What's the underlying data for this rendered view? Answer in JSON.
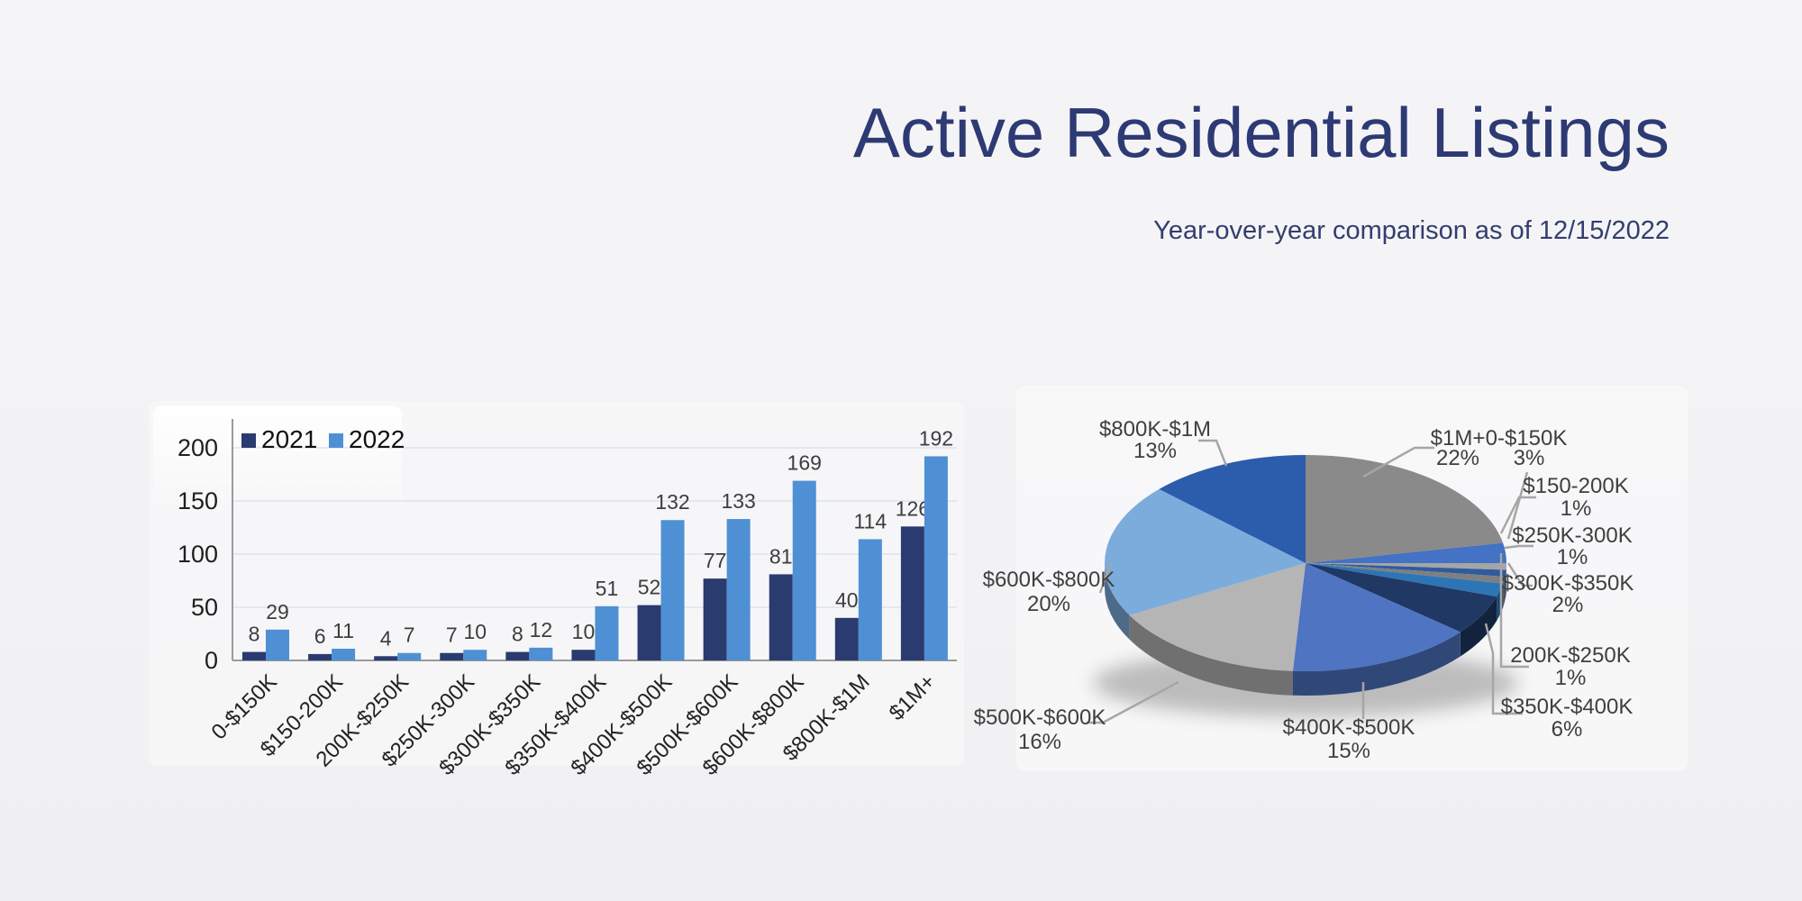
{
  "page": {
    "background": "#f2f2f4"
  },
  "header": {
    "title": "Active Residential Listings",
    "subtitle": "Year-over-year comparison as of 12/15/2022"
  },
  "chart_data": [
    {
      "type": "bar",
      "title": "",
      "xlabel": "",
      "ylabel": "",
      "categories": [
        "0-$150K",
        "$150-200K",
        "200K-$250K",
        "$250K-300K",
        "$300K-$350K",
        "$350K-$400K",
        "$400K-$500K",
        "$500K-$600K",
        "$600K-$800K",
        "$800K-$1M",
        "$1M+"
      ],
      "series": [
        {
          "name": "2021",
          "color": "#293b6f",
          "values": [
            8,
            6,
            4,
            7,
            8,
            10,
            52,
            77,
            81,
            40,
            126
          ]
        },
        {
          "name": "2022",
          "color": "#4f90d5",
          "values": [
            29,
            11,
            7,
            10,
            12,
            51,
            132,
            133,
            169,
            114,
            192
          ]
        }
      ],
      "ylim": [
        0,
        200
      ],
      "yticks": [
        0,
        50,
        100,
        150,
        200
      ],
      "grid": true,
      "value_labels": true,
      "legend_position": "top-left"
    },
    {
      "type": "pie",
      "style": "3d",
      "labels": [
        "0-$150K",
        "$150-200K",
        "200K-$250K",
        "$250K-300K",
        "$300K-$350K",
        "$350K-$400K",
        "$400K-$500K",
        "$500K-$600K",
        "$600K-$800K",
        "$800K-$1M",
        "$1M+"
      ],
      "values": [
        3,
        1,
        1,
        1,
        2,
        6,
        15,
        16,
        20,
        13,
        22
      ],
      "percent_labels": [
        "3%",
        "1%",
        "1%",
        "1%",
        "2%",
        "6%",
        "15%",
        "16%",
        "20%",
        "13%",
        "22%"
      ],
      "colors": [
        "#4472c4",
        "#a5a5a5",
        "#2f5b9d",
        "#7f7f7f",
        "#2e75b6",
        "#1f3864",
        "#4e74c2",
        "#b5b5b5",
        "#7cacdc",
        "#2c5cac",
        "#8a8a8a"
      ],
      "legend_position": "none"
    }
  ],
  "colors": {
    "title_navy": "#2d3a73",
    "gridline": "#dce3f0",
    "axis": "#9a9a9a",
    "bar_label": "#3d3d3d",
    "pie_label": "#3f3f3f",
    "leader_line": "#a6a6a6"
  }
}
